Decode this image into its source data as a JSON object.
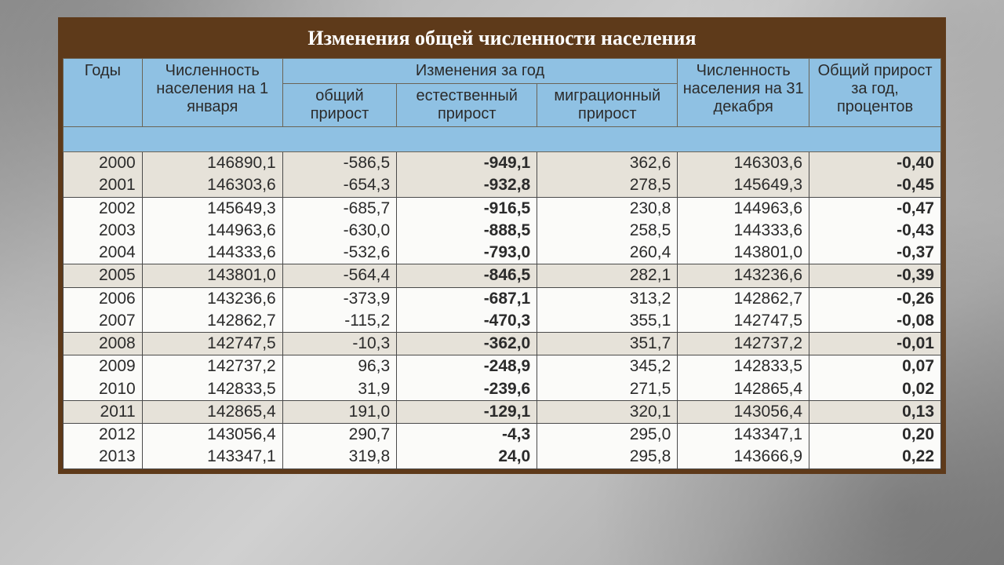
{
  "title": "Изменения общей численности населения",
  "header": {
    "years": "Годы",
    "pop_jan1": "Численность населения на 1 января",
    "changes": "Изменения за год",
    "total_growth": "общий прирост",
    "natural_growth": "естественный прирост",
    "migration_growth": "миграционный прирост",
    "pop_dec31": "Численность населения на 31 декабря",
    "pct_growth": "Общий прирост за год, процентов"
  },
  "colors": {
    "frame": "#5e3a1a",
    "header_bg": "#8fc1e3",
    "row_alt_bg": "#e6e2d9",
    "row_plain_bg": "#fbfbf9",
    "text": "#2b2b2b",
    "border": "#4a4a4a"
  },
  "font": {
    "title_family": "Times New Roman",
    "title_size_pt": 20,
    "body_family": "Arial",
    "body_size_pt": 16
  },
  "groups": [
    [
      {
        "year": "2000",
        "pop1": "146890,1",
        "g1": "-586,5",
        "g2": "-949,1",
        "g3": "362,6",
        "pop2": "146303,6",
        "pct": "-0,40"
      },
      {
        "year": "2001",
        "pop1": "146303,6",
        "g1": "-654,3",
        "g2": "-932,8",
        "g3": "278,5",
        "pop2": "145649,3",
        "pct": "-0,45"
      }
    ],
    [
      {
        "year": "2002",
        "pop1": "145649,3",
        "g1": "-685,7",
        "g2": "-916,5",
        "g3": "230,8",
        "pop2": "144963,6",
        "pct": "-0,47"
      },
      {
        "year": "2003",
        "pop1": "144963,6",
        "g1": "-630,0",
        "g2": "-888,5",
        "g3": "258,5",
        "pop2": "144333,6",
        "pct": "-0,43"
      },
      {
        "year": "2004",
        "pop1": "144333,6",
        "g1": "-532,6",
        "g2": "-793,0",
        "g3": "260,4",
        "pop2": "143801,0",
        "pct": "-0,37"
      }
    ],
    [
      {
        "year": "2005",
        "pop1": "143801,0",
        "g1": "-564,4",
        "g2": "-846,5",
        "g3": "282,1",
        "pop2": "143236,6",
        "pct": "-0,39"
      }
    ],
    [
      {
        "year": "2006",
        "pop1": "143236,6",
        "g1": "-373,9",
        "g2": "-687,1",
        "g3": "313,2",
        "pop2": "142862,7",
        "pct": "-0,26"
      },
      {
        "year": "2007",
        "pop1": "142862,7",
        "g1": "-115,2",
        "g2": "-470,3",
        "g3": "355,1",
        "pop2": "142747,5",
        "pct": "-0,08"
      }
    ],
    [
      {
        "year": "2008",
        "pop1": "142747,5",
        "g1": "-10,3",
        "g2": "-362,0",
        "g3": "351,7",
        "pop2": "142737,2",
        "pct": "-0,01"
      }
    ],
    [
      {
        "year": "2009",
        "pop1": "142737,2",
        "g1": "96,3",
        "g2": "-248,9",
        "g3": "345,2",
        "pop2": "142833,5",
        "pct": "0,07"
      },
      {
        "year": "2010",
        "pop1": "142833,5",
        "g1": "31,9",
        "g2": "-239,6",
        "g3": "271,5",
        "pop2": "142865,4",
        "pct": "0,02"
      }
    ],
    [
      {
        "year": "2011",
        "pop1": "142865,4",
        "g1": "191,0",
        "g2": "-129,1",
        "g3": "320,1",
        "pop2": "143056,4",
        "pct": "0,13"
      }
    ],
    [
      {
        "year": "2012",
        "pop1": "143056,4",
        "g1": "290,7",
        "g2": "-4,3",
        "g3": "295,0",
        "pop2": "143347,1",
        "pct": "0,20"
      },
      {
        "year": "2013",
        "pop1": "143347,1",
        "g1": "319,8",
        "g2": "24,0",
        "g3": "295,8",
        "pop2": "143666,9",
        "pct": "0,22"
      }
    ]
  ]
}
